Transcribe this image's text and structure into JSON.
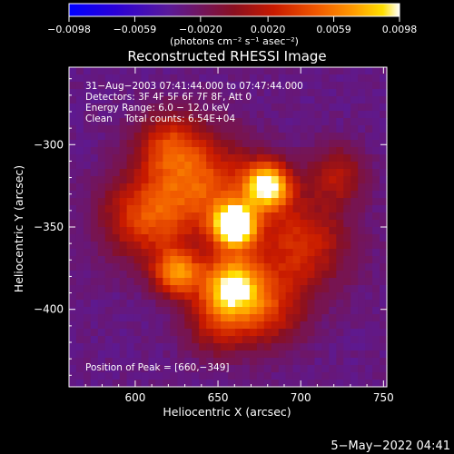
{
  "colors": {
    "background": "#000000",
    "text": "#ffffff",
    "colormap": [
      "#0000ff",
      "#3a00c8",
      "#5a1a9a",
      "#8a1020",
      "#c81a00",
      "#f05800",
      "#ff9a00",
      "#ffe000",
      "#ffffff"
    ]
  },
  "chart_data": {
    "type": "heatmap",
    "title": "Reconstructed RHESSI Image",
    "xlabel": "Heliocentric X (arcsec)",
    "ylabel": "Heliocentric Y (arcsec)",
    "xlim": [
      560,
      752
    ],
    "ylim": [
      -447,
      -253
    ],
    "xticks": [
      600,
      650,
      700,
      750
    ],
    "yticks": [
      -300,
      -350,
      -400
    ],
    "x_tick_labels": [
      "600",
      "650",
      "700",
      "750"
    ],
    "y_tick_labels": [
      "−300",
      "−350",
      "−400"
    ],
    "colorbar": {
      "min": -0.0098,
      "max": 0.0098,
      "ticks": [
        -0.0098,
        -0.0059,
        -0.002,
        0.002,
        0.0059,
        0.0098
      ],
      "tick_labels": [
        "−0.0098",
        "−0.0059",
        "−0.0020",
        "0.0020",
        "0.0059",
        "0.0098"
      ],
      "unit_label": "(photons cm⁻² s⁻¹ asec⁻²)"
    },
    "annotations": {
      "time_range": "31−Aug−2003 07:41:44.000 to 07:47:44.000",
      "detectors": "Detectors: 3F 4F 5F 6F 7F 8F, Att 0",
      "energy": "Energy Range: 6.0 − 12.0 keV",
      "clean": "Clean    Total counts: 6.54E+04",
      "peak": "Position of Peak = [660,−349]"
    },
    "peak": {
      "x": 660,
      "y": -349
    },
    "sources": [
      {
        "x": 660,
        "y": -349,
        "amp": 1.0,
        "sigma": 9
      },
      {
        "x": 680,
        "y": -325,
        "amp": 0.82,
        "sigma": 10
      },
      {
        "x": 658,
        "y": -385,
        "amp": 0.72,
        "sigma": 13
      },
      {
        "x": 625,
        "y": -378,
        "amp": 0.6,
        "sigma": 10
      },
      {
        "x": 640,
        "y": -325,
        "amp": 0.48,
        "sigma": 22
      },
      {
        "x": 605,
        "y": -345,
        "amp": 0.42,
        "sigma": 18
      },
      {
        "x": 700,
        "y": -360,
        "amp": 0.4,
        "sigma": 20
      },
      {
        "x": 680,
        "y": -400,
        "amp": 0.36,
        "sigma": 16
      },
      {
        "x": 620,
        "y": -300,
        "amp": 0.34,
        "sigma": 14
      },
      {
        "x": 722,
        "y": -318,
        "amp": 0.3,
        "sigma": 12
      },
      {
        "x": 650,
        "y": -408,
        "amp": 0.32,
        "sigma": 14
      }
    ],
    "footer_date": "5−May−2022 04:41"
  }
}
